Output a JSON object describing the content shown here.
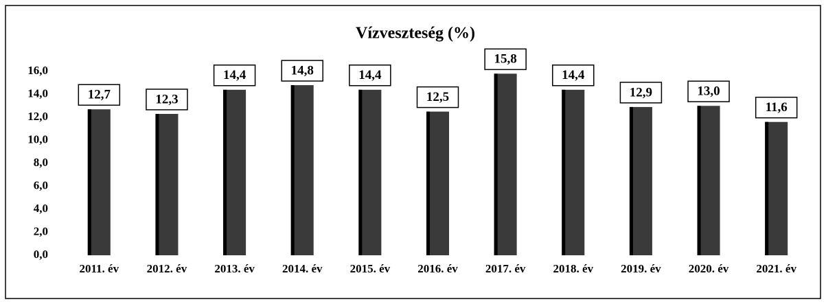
{
  "chart_data": {
    "type": "bar",
    "title": "Vízveszteség (%)",
    "categories": [
      "2011. év",
      "2012. év",
      "2013. év",
      "2014. év",
      "2015. év",
      "2016. év",
      "2017. év",
      "2018. év",
      "2019. év",
      "2020. év",
      "2021. év"
    ],
    "values": [
      12.7,
      12.3,
      14.4,
      14.8,
      14.4,
      12.5,
      15.8,
      14.4,
      12.9,
      13.0,
      11.6
    ],
    "value_labels": [
      "12,7",
      "12,3",
      "14,4",
      "14,8",
      "14,4",
      "12,5",
      "15,8",
      "14,4",
      "12,9",
      "13,0",
      "11,6"
    ],
    "color": "#3a3a3a",
    "ylim": [
      0,
      16
    ],
    "yticks": [
      {
        "value": 0,
        "label": "0,0"
      },
      {
        "value": 2,
        "label": "2,0"
      },
      {
        "value": 4,
        "label": "4,0"
      },
      {
        "value": 6,
        "label": "6,0"
      },
      {
        "value": 8,
        "label": "8,0"
      },
      {
        "value": 10,
        "label": "10,0"
      },
      {
        "value": 12,
        "label": "12,0"
      },
      {
        "value": 14,
        "label": "14,0"
      },
      {
        "value": 16,
        "label": "16,0"
      }
    ],
    "grid": false
  }
}
